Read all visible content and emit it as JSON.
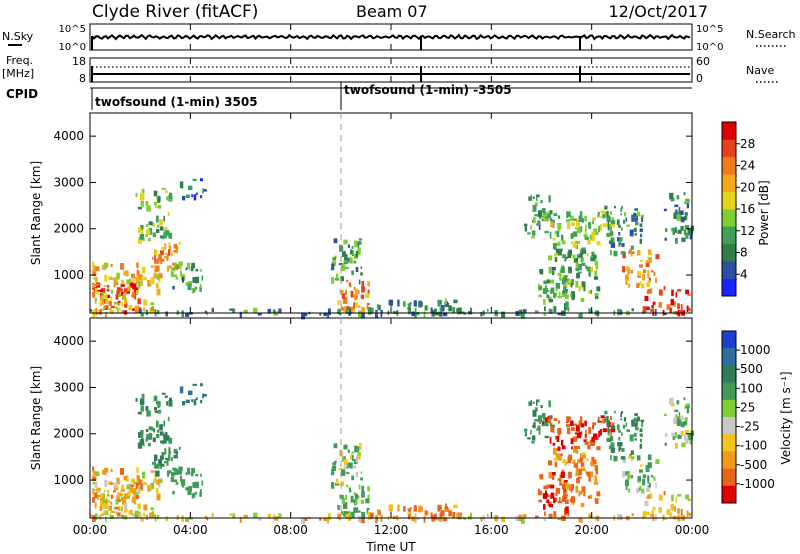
{
  "header": {
    "station": "Clyde River (fitACF)",
    "beam": "Beam 07",
    "date": "12/Oct/2017"
  },
  "top_panels": {
    "nsky_label": "N.Sky",
    "nsky_ticks": [
      "10^5",
      "10^0"
    ],
    "nsearch_label": "N.Search",
    "freq_label": "Freq.",
    "freq_unit": "[MHz]",
    "freq_ticks": [
      "18",
      "8"
    ],
    "nave_label": "Nave",
    "nave_ticks": [
      "60",
      "0"
    ],
    "cpid_label": "CPID",
    "cpid_segments": [
      {
        "label": "twofsound (1-min) 3505",
        "start_hour": 0
      },
      {
        "label": "twofsound (1-min) -3505",
        "start_hour": 10
      }
    ]
  },
  "x_axis": {
    "label": "Time UT",
    "ticks": [
      "00:00",
      "04:00",
      "08:00",
      "12:00",
      "16:00",
      "20:00",
      "00:00"
    ]
  },
  "power_panel": {
    "ylabel": "Slant Range [km]",
    "yticks": [
      "1000",
      "2000",
      "3000",
      "4000"
    ],
    "colorbar_label": "Power [dB]",
    "colorbar_ticks": [
      "4",
      "8",
      "12",
      "16",
      "20",
      "24",
      "28"
    ],
    "colors": [
      "#1b24ff",
      "#2a4fa3",
      "#2e7d4a",
      "#3da058",
      "#7ccf32",
      "#e6d21a",
      "#f4a81e",
      "#f07a1c",
      "#e8421a",
      "#e00000"
    ]
  },
  "velocity_panel": {
    "ylabel": "Slant Range [km]",
    "yticks": [
      "1000",
      "2000",
      "3000",
      "4000"
    ],
    "colorbar_label": "Velocity [m s⁻¹]",
    "colorbar_ticks": [
      "1000",
      "500",
      "100",
      "25",
      "-25",
      "-100",
      "-500",
      "-1000"
    ],
    "colors": [
      "#1b3fd0",
      "#2f6fa0",
      "#2f7d55",
      "#3e9a55",
      "#7ccf32",
      "#c8c8c8",
      "#f3c41c",
      "#f19a1a",
      "#e8641a",
      "#e00000"
    ]
  },
  "chart_data": {
    "type": "heatmap",
    "x_range_hours": [
      0,
      24
    ],
    "y_range_km": [
      180,
      4500
    ],
    "scatter_regions": [
      {
        "t0": 0.05,
        "t1": 1.9,
        "r0": 200,
        "r1": 900,
        "power_db": 28,
        "velocity": 0
      },
      {
        "t0": 0.05,
        "t1": 2.8,
        "r0": 200,
        "r1": 1300,
        "power_db": 18,
        "velocity": -25
      },
      {
        "t0": 2.3,
        "t1": 3.6,
        "r0": 1200,
        "r1": 1800,
        "power_db": 20,
        "velocity": 300
      },
      {
        "t0": 1.8,
        "t1": 3.2,
        "r0": 1800,
        "r1": 2900,
        "power_db": 12,
        "velocity": 300
      },
      {
        "t0": 3.2,
        "t1": 4.5,
        "r0": 700,
        "r1": 1300,
        "power_db": 10,
        "velocity": 200
      },
      {
        "t0": 3.5,
        "t1": 4.6,
        "r0": 2700,
        "r1": 3100,
        "power_db": 6,
        "velocity": 500
      },
      {
        "t0": 9.7,
        "t1": 11.2,
        "r0": 200,
        "r1": 900,
        "power_db": 22,
        "velocity": 150
      },
      {
        "t0": 9.6,
        "t1": 10.8,
        "r0": 900,
        "r1": 1800,
        "power_db": 10,
        "velocity": 100
      },
      {
        "t0": 0.0,
        "t1": 24.0,
        "r0": 180,
        "r1": 300,
        "power_db": 8,
        "velocity": -25
      },
      {
        "t0": 11.0,
        "t1": 14.5,
        "r0": 180,
        "r1": 500,
        "power_db": 8,
        "velocity": -100
      },
      {
        "t0": 17.3,
        "t1": 18.4,
        "r0": 1800,
        "r1": 2800,
        "power_db": 10,
        "velocity": 300
      },
      {
        "t0": 18.0,
        "t1": 20.8,
        "r0": 1700,
        "r1": 2400,
        "power_db": 14,
        "velocity": -500
      },
      {
        "t0": 18.2,
        "t1": 20.2,
        "r0": 500,
        "r1": 1700,
        "power_db": 12,
        "velocity": -100
      },
      {
        "t0": 17.8,
        "t1": 19.0,
        "r0": 200,
        "r1": 1200,
        "power_db": 10,
        "velocity": -500
      },
      {
        "t0": 21.2,
        "t1": 22.6,
        "r0": 800,
        "r1": 1600,
        "power_db": 22,
        "velocity": 100
      },
      {
        "t0": 22.0,
        "t1": 24.0,
        "r0": 200,
        "r1": 800,
        "power_db": 26,
        "velocity": -25
      },
      {
        "t0": 20.5,
        "t1": 22.0,
        "r0": 1500,
        "r1": 2500,
        "power_db": 8,
        "velocity": 300
      },
      {
        "t0": 22.8,
        "t1": 24.0,
        "r0": 1800,
        "r1": 2800,
        "power_db": 8,
        "velocity": 100
      }
    ]
  }
}
